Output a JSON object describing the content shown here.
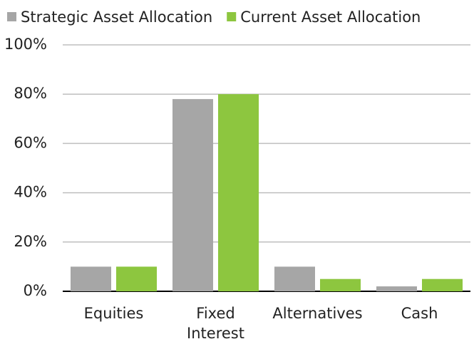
{
  "chart_data": {
    "type": "bar",
    "categories": [
      "Equities",
      "Fixed Interest",
      "Alternatives",
      "Cash"
    ],
    "series": [
      {
        "name": "Strategic Asset Allocation",
        "color": "#a6a6a6",
        "values": [
          10,
          78,
          10,
          2
        ]
      },
      {
        "name": "Current Asset Allocation",
        "color": "#8dc63f",
        "values": [
          10,
          80,
          5,
          5
        ]
      }
    ],
    "ylim": [
      0,
      100
    ],
    "yticks": [
      {
        "value": 0,
        "label": "0%"
      },
      {
        "value": 20,
        "label": "20%"
      },
      {
        "value": 40,
        "label": "40%"
      },
      {
        "value": 60,
        "label": "60%"
      },
      {
        "value": 80,
        "label": "80%"
      },
      {
        "value": 100,
        "label": "100%"
      }
    ],
    "grid": true,
    "legend": "top"
  }
}
